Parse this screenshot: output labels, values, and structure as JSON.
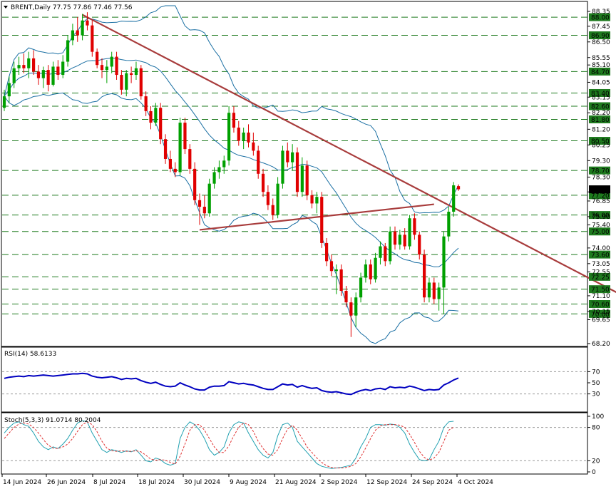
{
  "chart_data": [
    {
      "type": "candlestick",
      "title": "BRENT,Daily  77.75 77.86 77.46 77.56",
      "price_axis": [
        "88.35",
        "87.45",
        "86.50",
        "85.55",
        "85.10",
        "84.05",
        "83.15",
        "82.20",
        "81.20",
        "80.25",
        "79.30",
        "78.30",
        "77.40",
        "76.85",
        "75.90",
        "75.40",
        "74.00",
        "73.05",
        "72.55",
        "71.10",
        "70.15",
        "69.65",
        "68.20"
      ],
      "ylim": [
        68.2,
        88.35
      ],
      "price_levels": [
        {
          "label": "88.00",
          "value": 88.0
        },
        {
          "label": "86.90",
          "value": 86.9
        },
        {
          "label": "84.70",
          "value": 84.7
        },
        {
          "label": "83.40",
          "value": 83.4
        },
        {
          "label": "82.60",
          "value": 82.6
        },
        {
          "label": "81.80",
          "value": 81.8
        },
        {
          "label": "80.50",
          "value": 80.5
        },
        {
          "label": "78.70",
          "value": 78.7
        },
        {
          "label": "77.20",
          "value": 77.2
        },
        {
          "label": "76.00",
          "value": 76.0
        },
        {
          "label": "75.00",
          "value": 75.0
        },
        {
          "label": "73.60",
          "value": 73.6
        },
        {
          "label": "72.25",
          "value": 72.25
        },
        {
          "label": "71.50",
          "value": 71.5
        },
        {
          "label": "70.60",
          "value": 70.6
        },
        {
          "label": "70.00",
          "value": 70.0
        }
      ],
      "current_price": {
        "label": "77.56",
        "value": 77.56
      },
      "candles": [
        {
          "o": 82.5,
          "h": 83.6,
          "l": 82.3,
          "c": 83.2
        },
        {
          "o": 83.2,
          "h": 84.4,
          "l": 82.8,
          "c": 84.0
        },
        {
          "o": 84.0,
          "h": 85.3,
          "l": 83.7,
          "c": 84.9
        },
        {
          "o": 84.9,
          "h": 85.6,
          "l": 84.5,
          "c": 85.1
        },
        {
          "o": 85.1,
          "h": 85.8,
          "l": 84.6,
          "c": 84.9
        },
        {
          "o": 84.9,
          "h": 85.9,
          "l": 84.3,
          "c": 85.5
        },
        {
          "o": 85.5,
          "h": 86.0,
          "l": 84.5,
          "c": 84.7
        },
        {
          "o": 84.7,
          "h": 85.1,
          "l": 83.9,
          "c": 84.3
        },
        {
          "o": 84.3,
          "h": 85.0,
          "l": 83.7,
          "c": 84.8
        },
        {
          "o": 84.8,
          "h": 85.1,
          "l": 83.5,
          "c": 83.9
        },
        {
          "o": 83.9,
          "h": 85.3,
          "l": 83.8,
          "c": 85.0
        },
        {
          "o": 85.0,
          "h": 85.4,
          "l": 84.2,
          "c": 84.5
        },
        {
          "o": 84.5,
          "h": 85.7,
          "l": 84.3,
          "c": 85.3
        },
        {
          "o": 85.3,
          "h": 86.9,
          "l": 85.0,
          "c": 86.6
        },
        {
          "o": 86.6,
          "h": 87.6,
          "l": 86.3,
          "c": 87.2
        },
        {
          "o": 87.2,
          "h": 88.0,
          "l": 86.5,
          "c": 86.9
        },
        {
          "o": 86.9,
          "h": 88.2,
          "l": 86.6,
          "c": 87.8
        },
        {
          "o": 87.8,
          "h": 88.3,
          "l": 87.2,
          "c": 87.5
        },
        {
          "o": 87.5,
          "h": 87.8,
          "l": 85.6,
          "c": 85.9
        },
        {
          "o": 85.9,
          "h": 86.1,
          "l": 84.9,
          "c": 85.1
        },
        {
          "o": 85.1,
          "h": 85.5,
          "l": 84.3,
          "c": 84.8
        },
        {
          "o": 84.8,
          "h": 85.4,
          "l": 84.0,
          "c": 85.0
        },
        {
          "o": 85.0,
          "h": 85.9,
          "l": 84.6,
          "c": 85.6
        },
        {
          "o": 85.6,
          "h": 85.9,
          "l": 84.2,
          "c": 84.5
        },
        {
          "o": 84.5,
          "h": 84.8,
          "l": 83.3,
          "c": 83.6
        },
        {
          "o": 83.6,
          "h": 84.8,
          "l": 83.2,
          "c": 84.6
        },
        {
          "o": 84.6,
          "h": 85.0,
          "l": 84.0,
          "c": 84.5
        },
        {
          "o": 84.5,
          "h": 85.3,
          "l": 84.2,
          "c": 84.9
        },
        {
          "o": 84.9,
          "h": 85.1,
          "l": 83.0,
          "c": 83.2
        },
        {
          "o": 83.2,
          "h": 83.5,
          "l": 82.0,
          "c": 82.3
        },
        {
          "o": 82.3,
          "h": 82.6,
          "l": 81.2,
          "c": 81.6
        },
        {
          "o": 81.6,
          "h": 82.8,
          "l": 81.4,
          "c": 82.5
        },
        {
          "o": 82.5,
          "h": 82.8,
          "l": 80.3,
          "c": 80.6
        },
        {
          "o": 80.6,
          "h": 80.9,
          "l": 79.1,
          "c": 79.4
        },
        {
          "o": 79.4,
          "h": 79.9,
          "l": 78.6,
          "c": 78.8
        },
        {
          "o": 78.8,
          "h": 79.2,
          "l": 78.3,
          "c": 78.6
        },
        {
          "o": 78.6,
          "h": 81.9,
          "l": 78.4,
          "c": 81.6
        },
        {
          "o": 81.6,
          "h": 81.9,
          "l": 79.7,
          "c": 80.0
        },
        {
          "o": 80.0,
          "h": 80.3,
          "l": 78.5,
          "c": 78.8
        },
        {
          "o": 78.8,
          "h": 79.2,
          "l": 76.6,
          "c": 76.9
        },
        {
          "o": 76.9,
          "h": 77.3,
          "l": 75.4,
          "c": 76.5
        },
        {
          "o": 76.5,
          "h": 77.2,
          "l": 75.8,
          "c": 76.1
        },
        {
          "o": 76.1,
          "h": 78.2,
          "l": 75.9,
          "c": 77.9
        },
        {
          "o": 77.9,
          "h": 78.9,
          "l": 77.6,
          "c": 78.6
        },
        {
          "o": 78.6,
          "h": 79.3,
          "l": 78.2,
          "c": 78.9
        },
        {
          "o": 78.9,
          "h": 79.6,
          "l": 78.5,
          "c": 79.3
        },
        {
          "o": 79.3,
          "h": 82.6,
          "l": 79.0,
          "c": 82.2
        },
        {
          "o": 82.2,
          "h": 82.6,
          "l": 81.0,
          "c": 81.3
        },
        {
          "o": 81.3,
          "h": 81.7,
          "l": 80.2,
          "c": 80.5
        },
        {
          "o": 80.5,
          "h": 81.3,
          "l": 80.0,
          "c": 81.0
        },
        {
          "o": 81.0,
          "h": 81.5,
          "l": 80.1,
          "c": 80.4
        },
        {
          "o": 80.4,
          "h": 81.0,
          "l": 79.6,
          "c": 79.9
        },
        {
          "o": 79.9,
          "h": 80.2,
          "l": 78.2,
          "c": 78.5
        },
        {
          "o": 78.5,
          "h": 78.8,
          "l": 77.1,
          "c": 77.4
        },
        {
          "o": 77.4,
          "h": 77.8,
          "l": 76.3,
          "c": 76.6
        },
        {
          "o": 76.6,
          "h": 77.0,
          "l": 75.7,
          "c": 76.0
        },
        {
          "o": 76.0,
          "h": 78.3,
          "l": 75.8,
          "c": 77.9
        },
        {
          "o": 77.9,
          "h": 80.2,
          "l": 77.6,
          "c": 79.9
        },
        {
          "o": 79.9,
          "h": 80.4,
          "l": 78.9,
          "c": 79.2
        },
        {
          "o": 79.2,
          "h": 80.3,
          "l": 78.7,
          "c": 79.8
        },
        {
          "o": 79.8,
          "h": 80.1,
          "l": 77.1,
          "c": 77.4
        },
        {
          "o": 77.4,
          "h": 79.5,
          "l": 77.1,
          "c": 79.0
        },
        {
          "o": 79.0,
          "h": 79.3,
          "l": 76.9,
          "c": 77.2
        },
        {
          "o": 77.2,
          "h": 77.5,
          "l": 76.4,
          "c": 76.7
        },
        {
          "o": 76.7,
          "h": 77.4,
          "l": 76.1,
          "c": 77.1
        },
        {
          "o": 77.1,
          "h": 77.4,
          "l": 74.0,
          "c": 74.3
        },
        {
          "o": 74.3,
          "h": 74.6,
          "l": 72.9,
          "c": 73.2
        },
        {
          "o": 73.2,
          "h": 73.6,
          "l": 72.3,
          "c": 72.6
        },
        {
          "o": 72.6,
          "h": 73.0,
          "l": 71.2,
          "c": 72.7
        },
        {
          "o": 72.7,
          "h": 73.0,
          "l": 71.1,
          "c": 71.4
        },
        {
          "o": 71.4,
          "h": 71.7,
          "l": 70.4,
          "c": 70.7
        },
        {
          "o": 70.7,
          "h": 71.0,
          "l": 68.6,
          "c": 69.9
        },
        {
          "o": 69.9,
          "h": 71.3,
          "l": 69.2,
          "c": 71.0
        },
        {
          "o": 71.0,
          "h": 72.5,
          "l": 70.7,
          "c": 72.2
        },
        {
          "o": 72.2,
          "h": 73.3,
          "l": 71.9,
          "c": 73.0
        },
        {
          "o": 73.0,
          "h": 73.3,
          "l": 71.8,
          "c": 72.1
        },
        {
          "o": 72.1,
          "h": 73.7,
          "l": 71.9,
          "c": 73.4
        },
        {
          "o": 73.4,
          "h": 74.4,
          "l": 73.0,
          "c": 74.1
        },
        {
          "o": 74.1,
          "h": 74.3,
          "l": 72.9,
          "c": 73.2
        },
        {
          "o": 73.2,
          "h": 75.3,
          "l": 73.0,
          "c": 75.0
        },
        {
          "o": 75.0,
          "h": 75.3,
          "l": 73.9,
          "c": 74.2
        },
        {
          "o": 74.2,
          "h": 75.1,
          "l": 73.9,
          "c": 74.8
        },
        {
          "o": 74.8,
          "h": 75.2,
          "l": 73.9,
          "c": 74.1
        },
        {
          "o": 74.1,
          "h": 76.0,
          "l": 73.9,
          "c": 75.8
        },
        {
          "o": 75.8,
          "h": 76.1,
          "l": 74.5,
          "c": 74.8
        },
        {
          "o": 74.8,
          "h": 75.0,
          "l": 73.3,
          "c": 73.6
        },
        {
          "o": 73.6,
          "h": 73.9,
          "l": 70.7,
          "c": 71.0
        },
        {
          "o": 71.0,
          "h": 72.2,
          "l": 70.7,
          "c": 71.9
        },
        {
          "o": 71.9,
          "h": 72.2,
          "l": 70.6,
          "c": 70.9
        },
        {
          "o": 70.9,
          "h": 71.9,
          "l": 70.2,
          "c": 71.6
        },
        {
          "o": 71.6,
          "h": 75.0,
          "l": 70.0,
          "c": 74.7
        },
        {
          "o": 74.7,
          "h": 76.5,
          "l": 74.4,
          "c": 76.2
        },
        {
          "o": 76.2,
          "h": 78.0,
          "l": 75.9,
          "c": 77.8
        },
        {
          "o": 77.75,
          "h": 77.86,
          "l": 77.46,
          "c": 77.56
        }
      ],
      "trendlines": [
        {
          "start_bar": 16,
          "start_price": 88.15,
          "end_bar": 128,
          "end_price": 70.9,
          "color": "#a83c3c"
        },
        {
          "start_bar": 40,
          "start_price": 75.1,
          "end_bar": 88,
          "end_price": 76.65,
          "color": "#a83c3c"
        }
      ],
      "bollinger": {
        "upper_color": "#1a6fa3",
        "mid_color": "#1a6fa3",
        "lower_color": "#1a6fa3"
      },
      "dates": [
        "14 Jun 2024",
        "26 Jun 2024",
        "8 Jul 2024",
        "18 Jul 2024",
        "30 Jul 2024",
        "9 Aug 2024",
        "21 Aug 2024",
        "2 Sep 2024",
        "12 Sep 2024",
        "24 Sep 2024",
        "4 Oct 2024"
      ]
    },
    {
      "type": "line",
      "title": "RSI(14) 58.6133",
      "ylim": [
        0,
        100
      ],
      "axis_labels": [
        "70",
        "50",
        "30"
      ],
      "levels": [
        70,
        30
      ],
      "series": [
        {
          "color": "#0000c0",
          "values": [
            58,
            60,
            61,
            62,
            61,
            63,
            62,
            63,
            64,
            63,
            62,
            63,
            64,
            65,
            66,
            66,
            67,
            66,
            62,
            60,
            59,
            60,
            61,
            59,
            56,
            58,
            57,
            58,
            54,
            51,
            49,
            51,
            47,
            44,
            43,
            44,
            50,
            46,
            43,
            39,
            37,
            37,
            42,
            44,
            44,
            45,
            52,
            50,
            48,
            49,
            47,
            46,
            43,
            40,
            38,
            38,
            43,
            48,
            46,
            47,
            42,
            45,
            42,
            40,
            41,
            36,
            34,
            33,
            34,
            32,
            30,
            29,
            33,
            36,
            38,
            36,
            39,
            40,
            38,
            43,
            41,
            42,
            41,
            44,
            42,
            39,
            36,
            38,
            37,
            38,
            46,
            50,
            55,
            58.6
          ]
        }
      ]
    },
    {
      "type": "line",
      "title": "Stoch(5,3,3) 91.0714 80.2004",
      "ylim": [
        0,
        100
      ],
      "axis_labels": [
        "100",
        "80",
        "20",
        "0"
      ],
      "levels": [
        80,
        20
      ],
      "series": [
        {
          "name": "%K",
          "color": "#20a0b0",
          "values": [
            70,
            80,
            88,
            90,
            85,
            82,
            70,
            55,
            45,
            40,
            45,
            42,
            50,
            60,
            75,
            88,
            92,
            90,
            70,
            55,
            40,
            35,
            40,
            38,
            35,
            38,
            36,
            40,
            30,
            20,
            18,
            25,
            22,
            15,
            12,
            15,
            60,
            80,
            90,
            85,
            75,
            60,
            40,
            30,
            35,
            45,
            70,
            85,
            90,
            88,
            70,
            55,
            40,
            30,
            25,
            35,
            65,
            85,
            88,
            80,
            55,
            45,
            35,
            25,
            15,
            10,
            8,
            6,
            7,
            8,
            10,
            12,
            25,
            45,
            60,
            80,
            85,
            85,
            84,
            86,
            85,
            80,
            70,
            50,
            35,
            22,
            20,
            22,
            40,
            55,
            80,
            90,
            91.07
          ]
        },
        {
          "name": "%D",
          "color": "#e03030",
          "values": [
            60,
            70,
            80,
            86,
            88,
            86,
            80,
            70,
            58,
            48,
            43,
            42,
            45,
            50,
            60,
            73,
            85,
            90,
            85,
            72,
            55,
            43,
            38,
            37,
            38,
            37,
            37,
            38,
            36,
            30,
            23,
            21,
            22,
            21,
            17,
            14,
            28,
            50,
            75,
            85,
            85,
            75,
            60,
            45,
            35,
            35,
            47,
            65,
            80,
            88,
            85,
            73,
            55,
            42,
            32,
            30,
            40,
            60,
            77,
            84,
            75,
            60,
            45,
            35,
            25,
            17,
            11,
            8,
            7,
            7,
            8,
            10,
            15,
            27,
            43,
            60,
            75,
            83,
            85,
            85,
            85,
            84,
            80,
            68,
            53,
            37,
            26,
            21,
            25,
            35,
            55,
            75,
            80.2
          ]
        }
      ]
    }
  ]
}
